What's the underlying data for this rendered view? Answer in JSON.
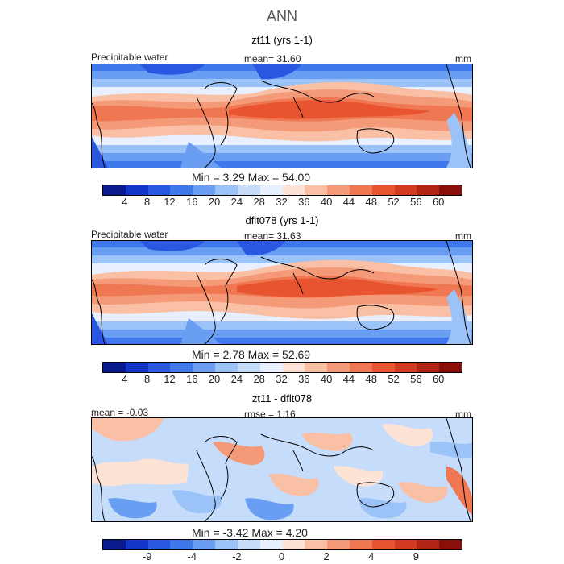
{
  "title": "ANN",
  "panels": [
    {
      "name": "zt11 (yrs 1-1)",
      "left_label": "Precipitable water",
      "center_label": "mean=  31.60",
      "units": "mm",
      "minmax": "Min =    3.29 Max =  54.00",
      "colorbar": {
        "colors": [
          "#0a1a8c",
          "#1235c8",
          "#2a57e0",
          "#3f78ea",
          "#6a9ef2",
          "#9cc3f7",
          "#c6dcfb",
          "#e8f0ff",
          "#fde3d6",
          "#fac0a6",
          "#f59a79",
          "#ef7752",
          "#e8542f",
          "#d13a1f",
          "#b02414",
          "#8a0e0a"
        ],
        "ticks": [
          "4",
          "8",
          "12",
          "16",
          "20",
          "24",
          "28",
          "32",
          "36",
          "40",
          "44",
          "48",
          "52",
          "56",
          "60"
        ]
      }
    },
    {
      "name": "dflt078 (yrs 1-1)",
      "left_label": "Precipitable water",
      "center_label": "mean=  31.63",
      "units": "mm",
      "minmax": "Min =    2.78 Max =  52.69",
      "colorbar": {
        "colors": [
          "#0a1a8c",
          "#1235c8",
          "#2a57e0",
          "#3f78ea",
          "#6a9ef2",
          "#9cc3f7",
          "#c6dcfb",
          "#e8f0ff",
          "#fde3d6",
          "#fac0a6",
          "#f59a79",
          "#ef7752",
          "#e8542f",
          "#d13a1f",
          "#b02414",
          "#8a0e0a"
        ],
        "ticks": [
          "4",
          "8",
          "12",
          "16",
          "20",
          "24",
          "28",
          "32",
          "36",
          "40",
          "44",
          "48",
          "52",
          "56",
          "60"
        ]
      }
    },
    {
      "name": "zt11 - dflt078",
      "left_label": "mean =  -0.03",
      "center_label": "rmse =   1.16",
      "units": "mm",
      "minmax": "Min =   -3.42 Max =   4.20",
      "colorbar": {
        "colors": [
          "#0a1a8c",
          "#1235c8",
          "#2a57e0",
          "#3f78ea",
          "#6a9ef2",
          "#9cc3f7",
          "#c6dcfb",
          "#e8f0ff",
          "#fde3d6",
          "#fac0a6",
          "#f59a79",
          "#ef7752",
          "#e8542f",
          "#d13a1f",
          "#b02414",
          "#8a0e0a"
        ],
        "ticks": [
          "-9",
          "-4",
          "-2",
          "0",
          "2",
          "4",
          "9"
        ]
      }
    }
  ]
}
